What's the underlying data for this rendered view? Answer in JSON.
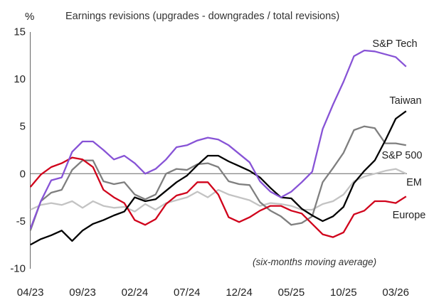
{
  "chart_data": {
    "type": "line",
    "title": "Earnings revisions (upgrades - downgrades / total revisions)",
    "ylabel": "%",
    "xlabel": "",
    "note": "(six-months moving average)",
    "ylim": [
      -10,
      15
    ],
    "yticks": [
      15,
      10,
      5,
      0,
      -5,
      -10
    ],
    "ytick_labels": [
      "15",
      "10",
      "5",
      "0",
      "-5",
      "-10"
    ],
    "xtick_labels": [
      "04/23",
      "09/23",
      "02/24",
      "07/24",
      "12/24",
      "05/25",
      "10/25",
      "03/26"
    ],
    "xtick_index": [
      0,
      5,
      10,
      15,
      20,
      25,
      30,
      35
    ],
    "x_start": "04/23",
    "x_frequency": "monthly",
    "grid": false,
    "zero_line": true,
    "series": [
      {
        "name": "S&P Tech",
        "color": "#8753d6",
        "values": [
          -5.8,
          -2.9,
          -0.7,
          -0.4,
          2.3,
          3.4,
          3.4,
          2.5,
          1.5,
          1.9,
          1.1,
          0.0,
          0.5,
          1.5,
          2.8,
          3.0,
          3.5,
          3.8,
          3.6,
          3.0,
          2.1,
          1.2,
          -0.8,
          -1.9,
          -2.5,
          -1.9,
          -0.9,
          0.2,
          4.7,
          7.3,
          9.7,
          12.4,
          13.0,
          12.9,
          12.6,
          12.3,
          11.3
        ]
      },
      {
        "name": "Taiwan",
        "color": "#000000",
        "values": [
          -7.5,
          -6.9,
          -6.5,
          -6.0,
          -7.1,
          -6.0,
          -5.3,
          -4.9,
          -4.4,
          -4.0,
          -2.5,
          -2.9,
          -2.7,
          -1.8,
          -0.9,
          -0.2,
          0.9,
          1.9,
          1.9,
          1.3,
          0.8,
          0.3,
          -0.4,
          -1.5,
          -2.5,
          -2.6,
          -3.7,
          -4.4,
          -5.0,
          -4.5,
          -3.5,
          -1.0,
          0.3,
          1.4,
          3.5,
          5.8,
          6.6
        ]
      },
      {
        "name": "S&P 500",
        "color": "#7f7f7f",
        "values": [
          -6.0,
          -2.9,
          -2.0,
          -1.7,
          0.4,
          1.4,
          1.4,
          -0.8,
          -1.1,
          -0.9,
          -2.2,
          -2.7,
          -2.2,
          0.0,
          0.5,
          0.4,
          1.0,
          1.1,
          0.7,
          -0.8,
          -1.1,
          -1.2,
          -3.0,
          -3.9,
          -4.5,
          -5.4,
          -5.2,
          -4.5,
          -0.9,
          0.6,
          2.2,
          4.6,
          5.0,
          4.8,
          3.2,
          3.2,
          3.0
        ]
      },
      {
        "name": "EM",
        "color": "#c3c3c3",
        "values": [
          -3.8,
          -3.3,
          -3.1,
          -3.3,
          -2.9,
          -3.6,
          -2.9,
          -3.4,
          -3.6,
          -3.5,
          -4.0,
          -3.2,
          -3.8,
          -3.1,
          -2.8,
          -2.5,
          -1.9,
          -2.5,
          -1.7,
          -2.2,
          -2.5,
          -2.8,
          -3.4,
          -3.1,
          -3.2,
          -3.4,
          -3.8,
          -3.8,
          -3.2,
          -2.9,
          -2.2,
          -0.8,
          -0.3,
          0.0,
          0.3,
          0.5,
          0.0
        ]
      },
      {
        "name": "Europe",
        "color": "#d0021b",
        "values": [
          -1.4,
          -0.1,
          0.7,
          1.1,
          1.7,
          1.5,
          0.7,
          -1.7,
          -2.5,
          -3.1,
          -4.9,
          -5.4,
          -4.8,
          -3.2,
          -2.3,
          -2.0,
          -0.9,
          -0.9,
          -2.2,
          -4.6,
          -5.1,
          -4.6,
          -3.9,
          -3.4,
          -3.4,
          -3.9,
          -4.2,
          -5.3,
          -6.4,
          -6.7,
          -6.2,
          -4.3,
          -3.9,
          -2.9,
          -2.9,
          -3.1,
          -2.4
        ]
      }
    ]
  }
}
